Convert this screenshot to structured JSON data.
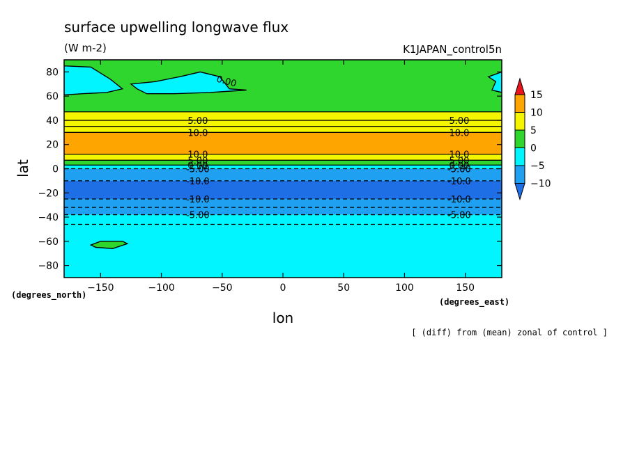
{
  "figure": {
    "title": "surface upwelling longwave flux",
    "units": "(W m-2)",
    "run_name": "K1JAPAN_control5n",
    "footer_note": "[ (diff) from (mean) zonal of control ]",
    "x_unit_label": "(degrees_east)",
    "y_unit_label": "(degrees_north)"
  },
  "chart_data": {
    "type": "heatmap",
    "description_free": true,
    "xlabel": "lon",
    "ylabel": "lat",
    "xlim": [
      -180,
      180
    ],
    "ylim": [
      -90,
      90
    ],
    "xticks": [
      -150,
      -100,
      -50,
      0,
      50,
      100,
      150
    ],
    "yticks": [
      -80,
      -60,
      -40,
      -20,
      0,
      20,
      40,
      60,
      80
    ],
    "colorbar": {
      "levels": [
        -10,
        -5,
        0,
        5,
        10,
        15
      ],
      "colors": [
        "#1e6fe6",
        "#1fa0f0",
        "#00f5ff",
        "#2ed62e",
        "#f5f500",
        "#ffa500",
        "#e8141e"
      ],
      "tick_labels": [
        "15",
        "10",
        "5",
        "0",
        "-5",
        "-10"
      ]
    },
    "bands": [
      {
        "lat_from": 47,
        "lat_to": 90,
        "color": "#2ed62e"
      },
      {
        "lat_from": 40,
        "lat_to": 47,
        "color": "#f5f500"
      },
      {
        "lat_from": 30,
        "lat_to": 40,
        "color": "#f5f500"
      },
      {
        "lat_from": 12,
        "lat_to": 30,
        "color": "#ffa500"
      },
      {
        "lat_from": 7,
        "lat_to": 12,
        "color": "#f5f500"
      },
      {
        "lat_from": 3,
        "lat_to": 7,
        "color": "#2ed62e"
      },
      {
        "lat_from": 0,
        "lat_to": 3,
        "color": "#00f5ff"
      },
      {
        "lat_from": -10,
        "lat_to": 0,
        "color": "#1fa0f0"
      },
      {
        "lat_from": -25,
        "lat_to": -10,
        "color": "#1e6fe6"
      },
      {
        "lat_from": -38,
        "lat_to": -25,
        "color": "#1fa0f0"
      },
      {
        "lat_from": -90,
        "lat_to": -38,
        "color": "#00f5ff"
      }
    ],
    "contours": [
      {
        "lat": 47,
        "label": "",
        "style": "solid"
      },
      {
        "lat": 40,
        "label": "5.00",
        "style": "solid"
      },
      {
        "lat": 35,
        "label": "",
        "style": "solid"
      },
      {
        "lat": 30,
        "label": "10.0",
        "style": "solid"
      },
      {
        "lat": 12,
        "label": "10.0",
        "style": "solid"
      },
      {
        "lat": 7,
        "label": "5.00",
        "style": "solid"
      },
      {
        "lat": 3,
        "label": "0.00",
        "style": "solid"
      },
      {
        "lat": 0,
        "label": "-5.00",
        "style": "dashed"
      },
      {
        "lat": -10,
        "label": "-10.0",
        "style": "dashed"
      },
      {
        "lat": -25,
        "label": "-10.0",
        "style": "dashed"
      },
      {
        "lat": -32,
        "label": "",
        "style": "dashed"
      },
      {
        "lat": -38,
        "label": "-5.00",
        "style": "dashed"
      },
      {
        "lat": -46,
        "label": "",
        "style": "dashed"
      }
    ],
    "label_longitudes": [
      -70,
      145
    ],
    "patches": [
      {
        "name": "north-patch-a",
        "color": "#00f5ff",
        "points": [
          [
            -180,
            85
          ],
          [
            -158,
            84
          ],
          [
            -142,
            74
          ],
          [
            -132,
            66
          ],
          [
            -145,
            63
          ],
          [
            -165,
            62
          ],
          [
            -180,
            61
          ]
        ]
      },
      {
        "name": "north-patch-b",
        "color": "#00f5ff",
        "points": [
          [
            -125,
            70
          ],
          [
            -105,
            72
          ],
          [
            -85,
            76
          ],
          [
            -68,
            80
          ],
          [
            -52,
            76
          ],
          [
            -44,
            66
          ],
          [
            -30,
            65
          ],
          [
            -60,
            63
          ],
          [
            -90,
            62
          ],
          [
            -112,
            62
          ],
          [
            -120,
            66
          ]
        ],
        "label": "0.00",
        "label_lon": -55,
        "label_lat": 72
      },
      {
        "name": "north-patch-c",
        "color": "#00f5ff",
        "points": [
          [
            180,
            80
          ],
          [
            169,
            76
          ],
          [
            175,
            72
          ],
          [
            172,
            65
          ],
          [
            180,
            63
          ]
        ]
      },
      {
        "name": "south-patch",
        "color": "#2ed62e",
        "points": [
          [
            -158,
            -63
          ],
          [
            -150,
            -60
          ],
          [
            -132,
            -60
          ],
          [
            -128,
            -62
          ],
          [
            -140,
            -66
          ],
          [
            -154,
            -65
          ]
        ]
      }
    ]
  }
}
